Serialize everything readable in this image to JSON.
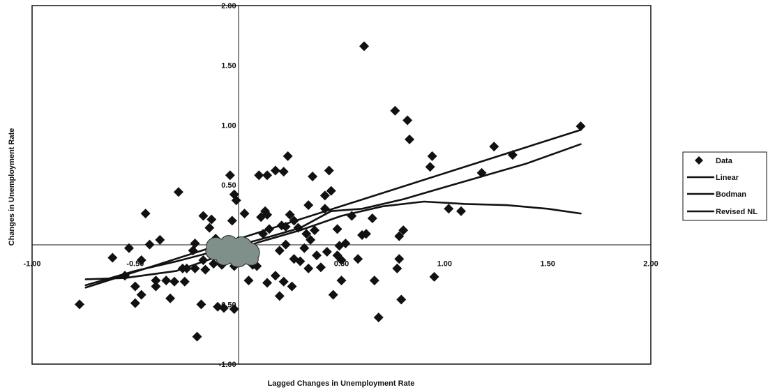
{
  "chart_data": {
    "type": "scatter",
    "title": "",
    "xlabel": "Lagged Changes in Unemployment Rate",
    "ylabel": "Changes in Unemployment Rate",
    "xlim": [
      -1.0,
      2.0
    ],
    "ylim": [
      -1.0,
      2.0
    ],
    "x_ticks": [
      -1.0,
      -0.5,
      0.5,
      1.0,
      1.5,
      2.0
    ],
    "y_ticks": [
      -1.0,
      -0.5,
      0.5,
      1.0,
      1.5,
      2.0
    ],
    "x_tick_labels": [
      "-1.00",
      "-0.50",
      "0.50",
      "1.00",
      "1.50",
      "2.00"
    ],
    "y_tick_labels": [
      "-1.00",
      "-0.50",
      "0.50",
      "1.00",
      "1.50",
      "2.00"
    ],
    "grid": false,
    "legend_position": "right",
    "legend": [
      "Data",
      "Linear",
      "Bodman",
      "Revised NL"
    ],
    "series": [
      {
        "name": "Data",
        "kind": "scatter",
        "marker": "diamond",
        "points": [
          [
            -0.77,
            -0.5
          ],
          [
            -0.61,
            -0.11
          ],
          [
            -0.53,
            -0.03
          ],
          [
            -0.55,
            -0.26
          ],
          [
            -0.5,
            -0.35
          ],
          [
            -0.5,
            -0.49
          ],
          [
            -0.47,
            -0.42
          ],
          [
            -0.47,
            -0.13
          ],
          [
            -0.45,
            0.26
          ],
          [
            -0.43,
            0.0
          ],
          [
            -0.4,
            -0.3
          ],
          [
            -0.4,
            -0.35
          ],
          [
            -0.38,
            0.04
          ],
          [
            -0.35,
            -0.3
          ],
          [
            -0.33,
            -0.45
          ],
          [
            -0.31,
            -0.31
          ],
          [
            -0.29,
            0.44
          ],
          [
            -0.26,
            -0.31
          ],
          [
            -0.27,
            -0.2
          ],
          [
            -0.25,
            -0.2
          ],
          [
            -0.22,
            -0.05
          ],
          [
            -0.21,
            0.01
          ],
          [
            -0.21,
            -0.2
          ],
          [
            -0.2,
            -0.77
          ],
          [
            -0.18,
            -0.5
          ],
          [
            -0.17,
            0.24
          ],
          [
            -0.17,
            -0.13
          ],
          [
            -0.16,
            -0.21
          ],
          [
            -0.14,
            0.14
          ],
          [
            -0.13,
            0.21
          ],
          [
            -0.13,
            -0.08
          ],
          [
            -0.12,
            -0.16
          ],
          [
            -0.11,
            0.05
          ],
          [
            -0.1,
            -0.52
          ],
          [
            -0.08,
            -0.17
          ],
          [
            -0.08,
            -0.09
          ],
          [
            -0.07,
            -0.53
          ],
          [
            -0.06,
            -0.04
          ],
          [
            -0.04,
            0.58
          ],
          [
            -0.03,
            0.2
          ],
          [
            -0.02,
            -0.18
          ],
          [
            -0.02,
            0.42
          ],
          [
            -0.01,
            0.37
          ],
          [
            0.0,
            -0.12
          ],
          [
            0.0,
            0.03
          ],
          [
            0.01,
            -0.03
          ],
          [
            -0.02,
            -0.54
          ],
          [
            0.03,
            0.26
          ],
          [
            0.04,
            -0.05
          ],
          [
            0.05,
            -0.3
          ],
          [
            0.07,
            -0.17
          ],
          [
            0.09,
            -0.18
          ],
          [
            0.1,
            0.58
          ],
          [
            0.11,
            0.23
          ],
          [
            0.12,
            0.09
          ],
          [
            0.13,
            0.28
          ],
          [
            0.14,
            -0.32
          ],
          [
            0.14,
            0.25
          ],
          [
            0.14,
            0.58
          ],
          [
            0.15,
            0.13
          ],
          [
            0.18,
            0.62
          ],
          [
            0.18,
            -0.26
          ],
          [
            0.2,
            -0.05
          ],
          [
            0.2,
            -0.43
          ],
          [
            0.21,
            0.16
          ],
          [
            0.22,
            0.61
          ],
          [
            0.22,
            -0.31
          ],
          [
            0.23,
            0.15
          ],
          [
            0.23,
            0.0
          ],
          [
            0.24,
            0.74
          ],
          [
            0.25,
            0.25
          ],
          [
            0.26,
            -0.35
          ],
          [
            0.27,
            -0.12
          ],
          [
            0.27,
            0.2
          ],
          [
            0.29,
            0.14
          ],
          [
            0.3,
            -0.14
          ],
          [
            0.32,
            -0.03
          ],
          [
            0.33,
            0.09
          ],
          [
            0.34,
            -0.2
          ],
          [
            0.34,
            0.33
          ],
          [
            0.35,
            0.04
          ],
          [
            0.36,
            0.57
          ],
          [
            0.37,
            0.12
          ],
          [
            0.38,
            -0.09
          ],
          [
            0.4,
            -0.19
          ],
          [
            0.42,
            0.41
          ],
          [
            0.42,
            0.3
          ],
          [
            0.43,
            -0.06
          ],
          [
            0.44,
            0.62
          ],
          [
            0.45,
            0.45
          ],
          [
            0.46,
            -0.42
          ],
          [
            0.48,
            -0.09
          ],
          [
            0.48,
            0.13
          ],
          [
            0.49,
            -0.01
          ],
          [
            0.5,
            -0.13
          ],
          [
            0.5,
            -0.3
          ],
          [
            0.52,
            0.01
          ],
          [
            0.55,
            0.24
          ],
          [
            0.58,
            -0.12
          ],
          [
            0.6,
            0.08
          ],
          [
            0.61,
            1.66
          ],
          [
            0.62,
            0.09
          ],
          [
            0.66,
            -0.3
          ],
          [
            0.65,
            0.22
          ],
          [
            0.68,
            -0.61
          ],
          [
            0.76,
            1.12
          ],
          [
            0.77,
            -0.2
          ],
          [
            0.78,
            -0.12
          ],
          [
            0.78,
            0.07
          ],
          [
            0.79,
            -0.46
          ],
          [
            0.8,
            0.12
          ],
          [
            0.82,
            1.04
          ],
          [
            0.83,
            0.88
          ],
          [
            0.93,
            0.65
          ],
          [
            0.94,
            0.74
          ],
          [
            0.95,
            -0.27
          ],
          [
            1.02,
            0.3
          ],
          [
            1.08,
            0.28
          ],
          [
            1.18,
            0.6
          ],
          [
            1.24,
            0.82
          ],
          [
            1.33,
            0.75
          ],
          [
            1.66,
            0.99
          ]
        ]
      },
      {
        "name": "Linear",
        "kind": "line",
        "points": [
          [
            -0.74,
            -0.36
          ],
          [
            1.66,
            0.96
          ]
        ]
      },
      {
        "name": "Bodman",
        "kind": "line",
        "points": [
          [
            -0.74,
            -0.29
          ],
          [
            -0.55,
            -0.28
          ],
          [
            -0.3,
            -0.22
          ],
          [
            -0.1,
            -0.1
          ],
          [
            0.1,
            0.02
          ],
          [
            0.3,
            0.12
          ],
          [
            0.5,
            0.24
          ],
          [
            0.7,
            0.32
          ],
          [
            0.9,
            0.36
          ],
          [
            1.1,
            0.34
          ],
          [
            1.3,
            0.33
          ],
          [
            1.5,
            0.3
          ],
          [
            1.66,
            0.26
          ]
        ]
      },
      {
        "name": "Revised NL",
        "kind": "line",
        "points": [
          [
            -0.74,
            -0.34
          ],
          [
            -0.5,
            -0.22
          ],
          [
            -0.3,
            -0.14
          ],
          [
            -0.1,
            -0.05
          ],
          [
            0.1,
            0.04
          ],
          [
            0.3,
            0.14
          ],
          [
            0.45,
            0.28
          ],
          [
            0.6,
            0.3
          ],
          [
            0.8,
            0.38
          ],
          [
            1.0,
            0.48
          ],
          [
            1.2,
            0.58
          ],
          [
            1.4,
            0.68
          ],
          [
            1.66,
            0.84
          ]
        ]
      }
    ]
  },
  "colors": {
    "marker": "#111111",
    "lines": "#111111",
    "smudge": "#7f8f89"
  }
}
